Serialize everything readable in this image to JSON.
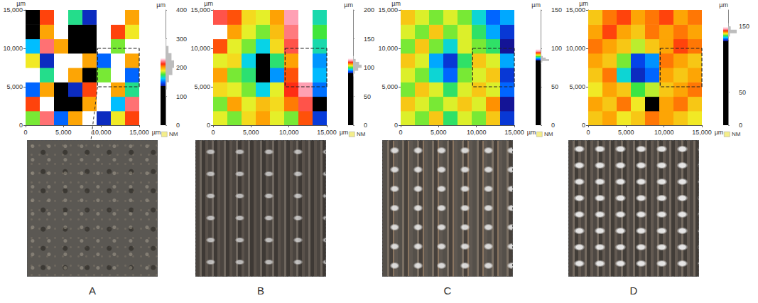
{
  "chart_data": [
    {
      "type": "heatmap",
      "panel": "A",
      "x_unit": "µm",
      "y_unit": "µm",
      "xlim": [
        0,
        15000
      ],
      "xticks": [
        0,
        5000,
        10000,
        15000
      ],
      "ylim": [
        0,
        15000
      ],
      "yticks": [
        0,
        5000,
        10000,
        15000
      ],
      "heatmap": {
        "x_edges": [
          0,
          1875,
          3750,
          5625,
          7500,
          9375,
          11250,
          13125,
          15000
        ],
        "y_edges": [
          0,
          1875,
          3750,
          5625,
          7500,
          9375,
          11250,
          13125,
          15000
        ],
        "values": [
          [
            180,
            220,
            150,
            200,
            230,
            140,
            190,
            210
          ],
          [
            210,
            270,
            130,
            120,
            200,
            250,
            160,
            220
          ],
          [
            150,
            200,
            110,
            140,
            210,
            280,
            200,
            170
          ],
          [
            230,
            170,
            280,
            200,
            130,
            180,
            240,
            150
          ],
          [
            190,
            140,
            290,
            230,
            200,
            150,
            270,
            200
          ],
          [
            160,
            220,
            200,
            100,
            90,
            260,
            180,
            280
          ],
          [
            130,
            200,
            240,
            80,
            120,
            290,
            210,
            190
          ],
          [
            120,
            210,
            280,
            170,
            140,
            270,
            230,
            200
          ]
        ]
      },
      "colorbar": {
        "unit": "µm",
        "lim": [
          0,
          400
        ],
        "ticks": [
          0,
          100,
          200,
          300,
          400
        ],
        "color_range": [
          135,
          225
        ],
        "histogram": {
          "bins": [
            100,
            125,
            150,
            175,
            200,
            225,
            250,
            275,
            300
          ],
          "counts": [
            5,
            15,
            40,
            80,
            100,
            70,
            35,
            10
          ]
        }
      },
      "inset": {
        "x": [
          9500,
          15000
        ],
        "y": [
          5000,
          10000
        ]
      },
      "missing_label": "NM"
    },
    {
      "type": "heatmap",
      "panel": "B",
      "x_unit": "µm",
      "y_unit": "µm",
      "xlim": [
        0,
        15000
      ],
      "xticks": [
        0,
        5000,
        10000,
        15000
      ],
      "ylim": [
        0,
        15000
      ],
      "yticks": [
        0,
        5000,
        10000,
        15000
      ],
      "heatmap": {
        "x_edges": [
          0,
          1875,
          3750,
          5625,
          7500,
          9375,
          11250,
          13125,
          15000
        ],
        "y_edges": [
          0,
          1875,
          3750,
          5625,
          7500,
          9375,
          11250,
          13125,
          15000
        ],
        "values": [
          [
            103,
            101,
            104,
            106,
            103,
            101,
            108,
            92
          ],
          [
            101,
            106,
            103,
            105,
            104,
            107,
            110,
            88
          ],
          [
            104,
            103,
            101,
            97,
            103,
            109,
            112,
            94
          ],
          [
            106,
            101,
            99,
            88,
            95,
            108,
            114,
            96
          ],
          [
            103,
            104,
            97,
            84,
            99,
            106,
            116,
            95
          ],
          [
            108,
            103,
            101,
            97,
            104,
            110,
            118,
            98
          ],
          [
            113,
            106,
            103,
            101,
            105,
            111,
            117,
            100
          ],
          [
            110,
            108,
            104,
            103,
            106,
            112,
            116,
            98
          ]
        ]
      },
      "colorbar": {
        "unit": "µm",
        "lim": [
          0,
          200
        ],
        "ticks": [
          0,
          50,
          100,
          150,
          200
        ],
        "color_range": [
          90,
          112
        ],
        "histogram": {
          "bins": [
            85,
            90,
            95,
            100,
            105,
            110,
            115,
            120
          ],
          "counts": [
            5,
            20,
            60,
            100,
            70,
            30,
            8
          ]
        }
      },
      "inset": {
        "x": [
          9500,
          15000
        ],
        "y": [
          5000,
          10000
        ]
      },
      "missing_label": "NM"
    },
    {
      "type": "heatmap",
      "panel": "C",
      "x_unit": "µm",
      "y_unit": "µm",
      "xlim": [
        0,
        15000
      ],
      "xticks": [
        0,
        5000,
        10000,
        15000
      ],
      "ylim": [
        0,
        15000
      ],
      "yticks": [
        0,
        5000,
        10000,
        15000
      ],
      "heatmap": {
        "x_edges": [
          0,
          1875,
          3750,
          5625,
          7500,
          9375,
          11250,
          13125,
          15000
        ],
        "y_edges": [
          0,
          1875,
          3750,
          5625,
          7500,
          9375,
          11250,
          13125,
          15000
        ],
        "values": [
          [
            91,
            90,
            92,
            89,
            91,
            90,
            92,
            85
          ],
          [
            92,
            91,
            90,
            91,
            92,
            91,
            93,
            84
          ],
          [
            90,
            92,
            91,
            89,
            91,
            92,
            91,
            86
          ],
          [
            91,
            90,
            88,
            86,
            90,
            91,
            92,
            85
          ],
          [
            92,
            91,
            87,
            85,
            89,
            92,
            91,
            87
          ],
          [
            90,
            92,
            90,
            88,
            91,
            90,
            89,
            84
          ],
          [
            91,
            90,
            92,
            90,
            91,
            89,
            87,
            85
          ],
          [
            92,
            91,
            90,
            91,
            90,
            88,
            86,
            87
          ]
        ]
      },
      "colorbar": {
        "unit": "µm",
        "lim": [
          0,
          150
        ],
        "ticks": [
          0,
          50,
          100,
          150
        ],
        "color_range": [
          84,
          96
        ],
        "histogram": {
          "bins": [
            80,
            82,
            84,
            86,
            88,
            90,
            92,
            94,
            96
          ],
          "counts": [
            5,
            20,
            100,
            60,
            25,
            10,
            5,
            2
          ]
        }
      },
      "inset": {
        "x": [
          9500,
          15000
        ],
        "y": [
          5000,
          10000
        ]
      },
      "missing_label": "NM"
    },
    {
      "type": "heatmap",
      "panel": "D",
      "x_unit": "µm",
      "y_unit": "µm",
      "xlim": [
        0,
        15000
      ],
      "xticks": [
        0,
        5000,
        10000,
        15000
      ],
      "ylim": [
        0,
        15000
      ],
      "yticks": [
        0,
        5000,
        10000,
        15000
      ],
      "heatmap": {
        "x_edges": [
          0,
          1875,
          3750,
          5625,
          7500,
          9375,
          11250,
          13125,
          15000
        ],
        "y_edges": [
          0,
          1875,
          3750,
          5625,
          7500,
          9375,
          11250,
          13125,
          15000
        ],
        "values": [
          [
            140,
            141,
            139,
            140,
            142,
            141,
            140,
            139
          ],
          [
            141,
            140,
            142,
            139,
            125,
            141,
            142,
            140
          ],
          [
            139,
            141,
            140,
            136,
            138,
            140,
            141,
            142
          ],
          [
            140,
            142,
            134,
            129,
            131,
            141,
            140,
            141
          ],
          [
            141,
            140,
            137,
            130,
            132,
            142,
            141,
            140
          ],
          [
            142,
            141,
            140,
            138,
            140,
            141,
            143,
            142
          ],
          [
            141,
            143,
            141,
            140,
            142,
            141,
            142,
            141
          ],
          [
            140,
            142,
            143,
            141,
            142,
            143,
            141,
            142
          ]
        ]
      },
      "colorbar": {
        "unit": "µm",
        "lim": [
          0,
          175
        ],
        "ticks": [
          0,
          50,
          150
        ],
        "color_range": [
          128,
          146
        ],
        "histogram": {
          "bins": [
            130,
            135,
            140,
            145,
            150,
            155
          ],
          "counts": [
            5,
            20,
            100,
            30,
            5
          ]
        }
      },
      "inset": {
        "x": [
          9500,
          15000
        ],
        "y": [
          5000,
          10000
        ]
      },
      "missing_label": "NM"
    }
  ]
}
